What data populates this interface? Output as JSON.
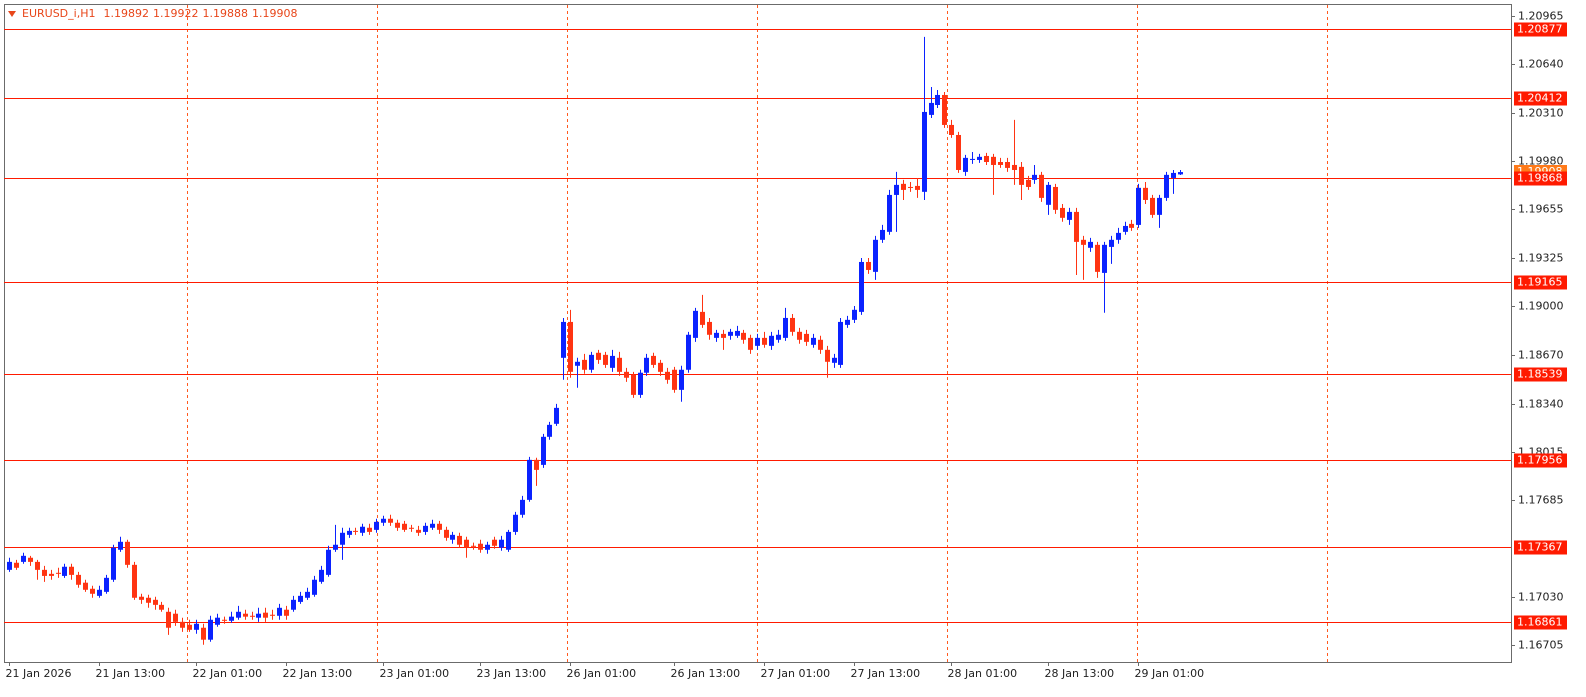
{
  "chart_data": {
    "type": "candlestick",
    "title": "EURUSD_i,H1",
    "bull_color": "#0a22ff",
    "bear_color": "#ff3412",
    "level_color": "#ff1a00",
    "current_color": "#ff7a1a",
    "grid": false,
    "ylim": [
      1.1659,
      1.21046
    ],
    "yticks": [
      1.20965,
      {
        "value": 1.2064,
        "label": "1.20640"
      },
      {
        "value": 1.2031,
        "label": "1.20310"
      },
      {
        "value": 1.1998,
        "label": "1.19980"
      },
      1.19655,
      1.19325,
      {
        "value": 1.19,
        "label": "1.19000"
      },
      {
        "value": 1.1867,
        "label": "1.18670"
      },
      {
        "value": 1.1834,
        "label": "1.18340"
      },
      1.18015,
      1.17685,
      {
        "value": 1.1703,
        "label": "1.17030"
      },
      1.16705
    ],
    "levels": [
      1.20877,
      1.20412,
      1.19868,
      1.19165,
      1.18539,
      1.17956,
      1.17367,
      1.16861
    ],
    "categories": [
      "21 Jan 2026",
      null,
      null,
      null,
      null,
      null,
      null,
      null,
      null,
      null,
      null,
      null,
      null,
      "21 Jan 13:00",
      null,
      null,
      null,
      null,
      null,
      null,
      null,
      null,
      null,
      null,
      null,
      null,
      null,
      "22 Jan 01:00",
      null,
      null,
      null,
      null,
      null,
      null,
      null,
      null,
      null,
      null,
      null,
      null,
      "22 Jan 13:00",
      null,
      null,
      null,
      null,
      null,
      null,
      null,
      null,
      null,
      null,
      null,
      null,
      null,
      "23 Jan 01:00",
      null,
      null,
      null,
      null,
      null,
      null,
      null,
      null,
      null,
      null,
      null,
      null,
      null,
      "23 Jan 13:00",
      null,
      null,
      null,
      null,
      null,
      null,
      null,
      null,
      null,
      null,
      null,
      null,
      "26 Jan 01:00",
      null,
      null,
      null,
      null,
      null,
      null,
      null,
      null,
      null,
      null,
      null,
      null,
      null,
      null,
      "26 Jan 13:00",
      null,
      null,
      null,
      null,
      null,
      null,
      null,
      null,
      null,
      null,
      null,
      null,
      "27 Jan 01:00",
      null,
      null,
      null,
      null,
      null,
      null,
      null,
      null,
      null,
      null,
      null,
      null,
      "27 Jan 13:00",
      null,
      null,
      null,
      null,
      null,
      null,
      null,
      null,
      null,
      null,
      null,
      null,
      null,
      "28 Jan 01:00",
      null,
      null,
      null,
      null,
      null,
      null,
      null,
      null,
      null,
      null,
      null,
      null,
      null,
      "28 Jan 13:00",
      null,
      null,
      null,
      null,
      null,
      null,
      null,
      null,
      null,
      null,
      null,
      null,
      "29 Jan 01:00",
      null,
      null,
      null,
      null,
      null,
      null
    ],
    "open": [
      1.17214,
      1.17262,
      1.17268,
      1.17296,
      1.17268,
      1.17214,
      1.17187,
      1.17194,
      1.17173,
      1.17235,
      1.1718,
      1.17127,
      1.17086,
      1.17038,
      1.17065,
      1.17147,
      1.1735,
      1.17404,
      1.17248,
      1.17032,
      1.17025,
      1.17011,
      1.16977,
      1.1693,
      1.16917,
      1.16862,
      1.16842,
      1.16808,
      1.16822,
      1.16741,
      1.16842,
      1.16876,
      1.16869,
      1.1689,
      1.16917,
      1.16903,
      1.1689,
      1.16924,
      1.1691,
      1.16903,
      1.16944,
      1.16944,
      1.16997,
      1.17025,
      1.17045,
      1.17133,
      1.1718,
      1.1735,
      1.17384,
      1.17451,
      1.17478,
      1.17465,
      1.17499,
      1.17485,
      1.17533,
      1.1756,
      1.17533,
      1.17526,
      1.17499,
      1.17485,
      1.17471,
      1.17499,
      1.17526,
      1.17485,
      1.17418,
      1.17444,
      1.17418,
      1.17377,
      1.17391,
      1.1735,
      1.17418,
      1.17364,
      1.1735,
      1.17471,
      1.17587,
      1.17688,
      1.17959,
      1.17925,
      1.18115,
      1.18203,
      1.1865,
      1.18893,
      1.18596,
      1.18636,
      1.18569,
      1.18684,
      1.1867,
      1.18582,
      1.1865,
      1.18555,
      1.18535,
      1.18399,
      1.18549,
      1.18663,
      1.18616,
      1.18555,
      1.18569,
      1.18433,
      1.18569,
      1.18785,
      1.18961,
      1.18893,
      1.18785,
      1.18812,
      1.18799,
      1.18799,
      1.18819,
      1.18785,
      1.18731,
      1.18785,
      1.18731,
      1.18772,
      1.18785,
      1.1892,
      1.18826,
      1.18812,
      1.18738,
      1.18772,
      1.18704,
      1.18616,
      1.18602,
      1.18873,
      1.18907,
      1.18961,
      1.19299,
      1.19232,
      1.19449,
      1.19503,
      1.19753,
      1.19828,
      1.19807,
      1.19814,
      1.19774,
      1.20295,
      1.20362,
      1.2043,
      1.20227,
      1.20159,
      1.19909,
      1.1999,
      1.1999,
      1.20017,
      1.20011,
      1.19976,
      1.19976,
      1.19956,
      1.19943,
      1.19855,
      1.19855,
      1.19889,
      1.19686,
      1.19807,
      1.19665,
      1.19584,
      1.19638,
      1.19449,
      1.19395,
      1.19415,
      1.19225,
      1.19401,
      1.19449,
      1.19503,
      1.19557,
      1.1955,
      1.19801,
      1.19733,
      1.19618,
      1.19733,
      1.19868,
      1.19892
    ],
    "high": [
      1.17296,
      1.17282,
      1.1733,
      1.17309,
      1.17282,
      1.17241,
      1.17214,
      1.17228,
      1.17255,
      1.17255,
      1.172,
      1.17147,
      1.17106,
      1.17106,
      1.1718,
      1.17384,
      1.17438,
      1.17418,
      1.17268,
      1.17052,
      1.17045,
      1.17032,
      1.16997,
      1.16957,
      1.16944,
      1.1689,
      1.16876,
      1.16876,
      1.16849,
      1.16903,
      1.16917,
      1.16897,
      1.1693,
      1.1697,
      1.16944,
      1.1693,
      1.16957,
      1.16957,
      1.16944,
      1.16984,
      1.1697,
      1.17038,
      1.17065,
      1.17093,
      1.17173,
      1.17241,
      1.17377,
      1.17519,
      1.17499,
      1.17499,
      1.17499,
      1.17526,
      1.17526,
      1.1756,
      1.1758,
      1.17587,
      1.17553,
      1.17546,
      1.17519,
      1.17512,
      1.17533,
      1.17553,
      1.17546,
      1.17506,
      1.17471,
      1.17465,
      1.17438,
      1.17398,
      1.17418,
      1.17404,
      1.17438,
      1.17444,
      1.17485,
      1.17607,
      1.17715,
      1.17979,
      1.17973,
      1.18135,
      1.18216,
      1.18338,
      1.1892,
      1.18975,
      1.1865,
      1.18677,
      1.1869,
      1.18704,
      1.1869,
      1.18704,
      1.1869,
      1.18582,
      1.18555,
      1.18569,
      1.18677,
      1.18684,
      1.18636,
      1.18582,
      1.18589,
      1.18596,
      1.18826,
      1.18988,
      1.19076,
      1.1892,
      1.18839,
      1.18839,
      1.18846,
      1.18866,
      1.18839,
      1.18806,
      1.18812,
      1.18826,
      1.18826,
      1.18839,
      1.18988,
      1.18947,
      1.18853,
      1.18839,
      1.18812,
      1.18799,
      1.18731,
      1.18677,
      1.1892,
      1.18934,
      1.19001,
      1.19326,
      1.19326,
      1.19476,
      1.1955,
      1.19787,
      1.19909,
      1.19855,
      1.19841,
      1.19868,
      1.20823,
      1.20484,
      1.20464,
      1.2045,
      1.20261,
      1.2018,
      1.20024,
      1.20044,
      1.20031,
      1.20038,
      1.20031,
      1.20004,
      1.20004,
      1.20261,
      1.19976,
      1.19882,
      1.19956,
      1.19909,
      1.19841,
      1.19828,
      1.19692,
      1.19665,
      1.19665,
      1.19476,
      1.19462,
      1.19435,
      1.19435,
      1.19476,
      1.1953,
      1.19571,
      1.19584,
      1.19828,
      1.19841,
      1.19753,
      1.19753,
      1.19909,
      1.19922,
      1.19922
    ],
    "low": [
      1.172,
      1.17214,
      1.17255,
      1.17241,
      1.17147,
      1.17133,
      1.17147,
      1.1716,
      1.1716,
      1.17147,
      1.17093,
      1.17065,
      1.17025,
      1.17025,
      1.17052,
      1.17133,
      1.17336,
      1.17228,
      1.17011,
      1.16984,
      1.16957,
      1.16944,
      1.1693,
      1.16774,
      1.16835,
      1.16794,
      1.16794,
      1.16781,
      1.16707,
      1.16727,
      1.16829,
      1.16849,
      1.16856,
      1.16876,
      1.16876,
      1.16876,
      1.16862,
      1.16862,
      1.16876,
      1.16876,
      1.16876,
      1.1693,
      1.16984,
      1.17011,
      1.17032,
      1.1712,
      1.17167,
      1.17336,
      1.17282,
      1.17431,
      1.17451,
      1.17444,
      1.17451,
      1.17465,
      1.17512,
      1.17512,
      1.17478,
      1.17471,
      1.17471,
      1.17444,
      1.17451,
      1.17485,
      1.17458,
      1.17411,
      1.17391,
      1.17364,
      1.17296,
      1.1735,
      1.1733,
      1.17323,
      1.17357,
      1.17343,
      1.17336,
      1.17451,
      1.17567,
      1.17675,
      1.17783,
      1.17905,
      1.18095,
      1.18189,
      1.18501,
      1.18515,
      1.18447,
      1.18542,
      1.18549,
      1.18609,
      1.18582,
      1.18555,
      1.18528,
      1.18487,
      1.18379,
      1.18379,
      1.18528,
      1.18582,
      1.18528,
      1.18474,
      1.18413,
      1.18352,
      1.18549,
      1.18758,
      1.18853,
      1.18772,
      1.18758,
      1.18704,
      1.18772,
      1.18785,
      1.18745,
      1.18677,
      1.18704,
      1.18718,
      1.18704,
      1.18752,
      1.18765,
      1.18799,
      1.18745,
      1.18731,
      1.18718,
      1.18677,
      1.18515,
      1.18582,
      1.18582,
      1.18853,
      1.18886,
      1.18941,
      1.19218,
      1.19178,
      1.19428,
      1.19483,
      1.19503,
      1.19719,
      1.19774,
      1.19733,
      1.19719,
      1.20274,
      1.20342,
      1.20207,
      1.20139,
      1.19902,
      1.19882,
      1.19963,
      1.1997,
      1.19956,
      1.19753,
      1.19936,
      1.19909,
      1.19821,
      1.19719,
      1.19787,
      1.19828,
      1.19706,
      1.19618,
      1.19625,
      1.19571,
      1.1955,
      1.19211,
      1.19178,
      1.19367,
      1.19191,
      1.18955,
      1.19286,
      1.19422,
      1.19483,
      1.1951,
      1.1953,
      1.19692,
      1.19598,
      1.1953,
      1.19713,
      1.1976,
      1.19888
    ],
    "close": [
      1.17268,
      1.17228,
      1.17309,
      1.17268,
      1.17214,
      1.17173,
      1.17173,
      1.17187,
      1.17235,
      1.1718,
      1.17113,
      1.17079,
      1.17052,
      1.17079,
      1.1716,
      1.17364,
      1.17404,
      1.17248,
      1.17025,
      1.17011,
      1.16991,
      1.16977,
      1.16944,
      1.16822,
      1.16862,
      1.16822,
      1.16808,
      1.16849,
      1.16741,
      1.16876,
      1.1689,
      1.16869,
      1.16897,
      1.1693,
      1.16897,
      1.16897,
      1.16917,
      1.1689,
      1.16903,
      1.16957,
      1.16903,
      1.17011,
      1.17038,
      1.17065,
      1.17147,
      1.17214,
      1.1735,
      1.17384,
      1.17465,
      1.17478,
      1.17471,
      1.17506,
      1.17471,
      1.17539,
      1.1756,
      1.17533,
      1.17499,
      1.17485,
      1.17492,
      1.17465,
      1.17512,
      1.17526,
      1.17485,
      1.17431,
      1.17451,
      1.17384,
      1.17364,
      1.1737,
      1.1735,
      1.17384,
      1.17377,
      1.17418,
      1.17471,
      1.17587,
      1.17688,
      1.17959,
      1.17891,
      1.18115,
      1.18196,
      1.18311,
      1.18893,
      1.18555,
      1.18623,
      1.18569,
      1.1867,
      1.18636,
      1.18602,
      1.18663,
      1.18555,
      1.18515,
      1.18399,
      1.18549,
      1.1865,
      1.18602,
      1.18555,
      1.18501,
      1.18433,
      1.18569,
      1.18806,
      1.18968,
      1.18873,
      1.18806,
      1.18819,
      1.18785,
      1.18826,
      1.18832,
      1.18772,
      1.18704,
      1.18785,
      1.18738,
      1.18799,
      1.18806,
      1.1892,
      1.18826,
      1.18772,
      1.18758,
      1.18785,
      1.18704,
      1.18623,
      1.1865,
      1.18893,
      1.18907,
      1.18975,
      1.19299,
      1.19245,
      1.19449,
      1.19516,
      1.19753,
      1.19821,
      1.19787,
      1.19801,
      1.19787,
      1.20315,
      1.20376,
      1.2043,
      1.20227,
      1.20159,
      1.19922,
      1.20004,
      1.19997,
      1.20011,
      1.19976,
      1.19956,
      1.19956,
      1.19936,
      1.19922,
      1.19821,
      1.19807,
      1.19889,
      1.19733,
      1.19821,
      1.19652,
      1.19598,
      1.19638,
      1.19435,
      1.19415,
      1.19435,
      1.19232,
      1.19415,
      1.19449,
      1.19496,
      1.19543,
      1.1953,
      1.19801,
      1.19719,
      1.19618,
      1.19733,
      1.19889,
      1.19902,
      1.19908
    ]
  }
}
